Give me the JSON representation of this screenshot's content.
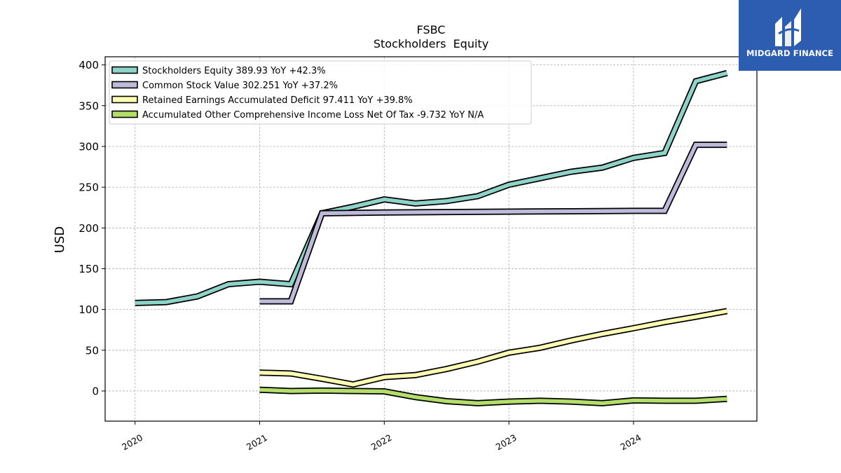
{
  "chart_data": {
    "type": "line",
    "title": "FSBC",
    "subtitle": "Stockholders  Equity",
    "ylabel": "USD",
    "xlabel": "",
    "ylim": [
      -37,
      410
    ],
    "xlim": [
      2019.76,
      2024.99
    ],
    "yticks": [
      0,
      50,
      100,
      150,
      200,
      250,
      300,
      350,
      400
    ],
    "xticks": [
      {
        "value": 2020,
        "label": "2020"
      },
      {
        "value": 2021,
        "label": "2021"
      },
      {
        "value": 2022,
        "label": "2022"
      },
      {
        "value": 2023,
        "label": "2023"
      },
      {
        "value": 2024,
        "label": "2024"
      }
    ],
    "grid": true,
    "legend_position": "top-left",
    "series": [
      {
        "name": "Stockholders Equity  389.93 YoY +42.3%",
        "color": "#8dd3c7",
        "x": [
          2020.0,
          2020.25,
          2020.5,
          2020.75,
          2021.0,
          2021.25,
          2021.5,
          2021.75,
          2022.0,
          2022.25,
          2022.5,
          2022.75,
          2023.0,
          2023.25,
          2023.5,
          2023.75,
          2024.0,
          2024.25,
          2024.5,
          2024.75
        ],
        "y": [
          108,
          109,
          116,
          131,
          134,
          131,
          218,
          226,
          235,
          230,
          233,
          239,
          253,
          261,
          269,
          274,
          286,
          292,
          380,
          390
        ]
      },
      {
        "name": "Common Stock Value  302.251 YoY +37.2%",
        "color": "#bebada",
        "x": [
          2021.0,
          2021.25,
          2021.5,
          2022.0,
          2022.5,
          2023.0,
          2023.5,
          2024.0,
          2024.25,
          2024.5,
          2024.75
        ],
        "y": [
          110,
          110,
          218,
          219,
          219.5,
          220,
          220.5,
          221,
          221,
          302,
          302
        ]
      },
      {
        "name": "Retained Earnings Accumulated Deficit  97.411 YoY +39.8%",
        "color": "#ffffb3",
        "x": [
          2021.0,
          2021.25,
          2021.5,
          2021.75,
          2022.0,
          2022.25,
          2022.5,
          2022.75,
          2023.0,
          2023.25,
          2023.5,
          2023.75,
          2024.0,
          2024.25,
          2024.5,
          2024.75
        ],
        "y": [
          22.5,
          21.5,
          15,
          8,
          17,
          19.5,
          27,
          36,
          47,
          53,
          62,
          70,
          77,
          84.5,
          91,
          98
        ]
      },
      {
        "name": "Accumulated Other Comprehensive Income Loss Net Of Tax  -9.732 YoY N/A",
        "color": "#b3de69",
        "x": [
          2021.0,
          2021.25,
          2021.5,
          2021.75,
          2022.0,
          2022.25,
          2022.5,
          2022.75,
          2023.0,
          2023.25,
          2023.5,
          2023.75,
          2024.0,
          2024.25,
          2024.5,
          2024.75
        ],
        "y": [
          1.5,
          0,
          0.5,
          0,
          -0.5,
          -7.5,
          -12.5,
          -15,
          -13,
          -12,
          -13,
          -15,
          -11.5,
          -12,
          -12,
          -9.7
        ]
      }
    ]
  },
  "logo": {
    "text": "MIDGARD FINANCE"
  }
}
